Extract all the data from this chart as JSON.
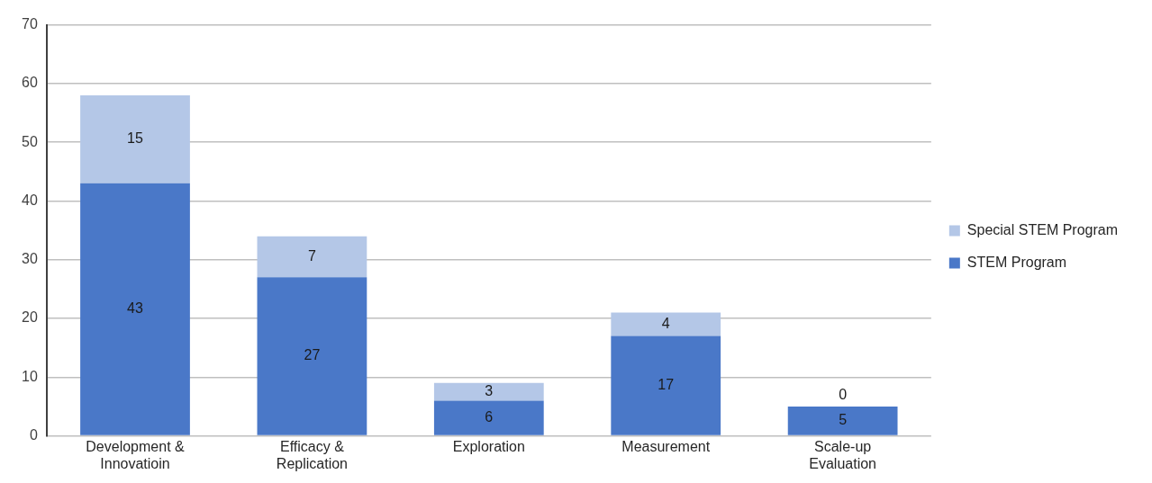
{
  "chart_data": {
    "type": "bar",
    "stacked": true,
    "categories": [
      "Development & Innovatioin",
      "Efficacy & Replication",
      "Exploration",
      "Measurement",
      "Scale-up Evaluation"
    ],
    "series": [
      {
        "name": "STEM Program",
        "color": "#4a78c8",
        "values": [
          43,
          27,
          6,
          17,
          5
        ]
      },
      {
        "name": "Special STEM Program",
        "color": "#b4c7e7",
        "values": [
          15,
          7,
          3,
          4,
          0
        ]
      }
    ],
    "ylim": [
      0,
      70
    ],
    "yticks": [
      0,
      10,
      20,
      30,
      40,
      50,
      60,
      70
    ],
    "grid": "y",
    "legend": "right",
    "data_labels": true
  }
}
